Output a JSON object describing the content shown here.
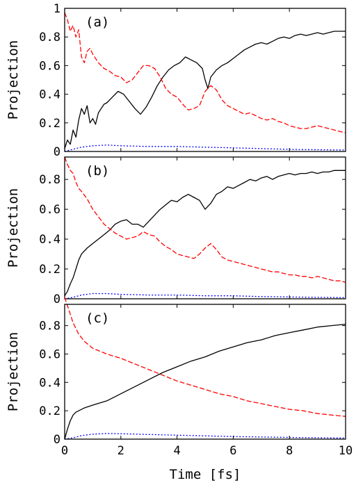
{
  "chart_data": [
    {
      "type": "line",
      "panel_label": "(a)",
      "xlabel": "",
      "ylabel": "Projection",
      "xlim": [
        0,
        10
      ],
      "ylim": [
        0,
        1
      ],
      "xticks": [
        "0",
        "2",
        "4",
        "6",
        "8",
        "10"
      ],
      "yticks": [
        "0",
        "0.2",
        "0.4",
        "0.6",
        "0.8",
        "1"
      ],
      "show_xtick_labels": false,
      "grid": false,
      "series": [
        {
          "color": "#000000",
          "style": "solid",
          "x": [
            0,
            0.1,
            0.2,
            0.3,
            0.4,
            0.5,
            0.6,
            0.7,
            0.8,
            0.9,
            1.0,
            1.1,
            1.2,
            1.3,
            1.4,
            1.5,
            1.7,
            1.9,
            2.1,
            2.3,
            2.5,
            2.7,
            2.9,
            3.1,
            3.3,
            3.5,
            3.7,
            3.9,
            4.1,
            4.3,
            4.5,
            4.7,
            4.9,
            5.0,
            5.1,
            5.2,
            5.4,
            5.6,
            5.8,
            6.0,
            6.2,
            6.4,
            6.6,
            6.8,
            7.0,
            7.2,
            7.4,
            7.6,
            7.8,
            8.0,
            8.2,
            8.4,
            8.6,
            8.8,
            9.0,
            9.2,
            9.4,
            9.6,
            9.8,
            10
          ],
          "y": [
            0.02,
            0.08,
            0.05,
            0.15,
            0.1,
            0.22,
            0.3,
            0.26,
            0.32,
            0.2,
            0.23,
            0.19,
            0.27,
            0.3,
            0.33,
            0.34,
            0.38,
            0.42,
            0.4,
            0.35,
            0.3,
            0.26,
            0.31,
            0.38,
            0.46,
            0.52,
            0.57,
            0.6,
            0.62,
            0.66,
            0.64,
            0.62,
            0.58,
            0.5,
            0.44,
            0.52,
            0.57,
            0.6,
            0.62,
            0.65,
            0.68,
            0.71,
            0.73,
            0.75,
            0.76,
            0.75,
            0.77,
            0.79,
            0.8,
            0.79,
            0.81,
            0.82,
            0.81,
            0.82,
            0.83,
            0.82,
            0.83,
            0.84,
            0.84,
            0.84
          ]
        },
        {
          "color": "#ff0000",
          "style": "dashed",
          "x": [
            0,
            0.1,
            0.2,
            0.3,
            0.4,
            0.5,
            0.6,
            0.7,
            0.8,
            0.9,
            1.0,
            1.2,
            1.4,
            1.6,
            1.8,
            2.0,
            2.2,
            2.4,
            2.6,
            2.8,
            3.0,
            3.2,
            3.4,
            3.6,
            3.8,
            4.0,
            4.2,
            4.4,
            4.6,
            4.8,
            5.0,
            5.2,
            5.4,
            5.6,
            5.8,
            6.0,
            6.2,
            6.4,
            6.6,
            6.8,
            7.0,
            7.2,
            7.4,
            7.6,
            7.8,
            8.0,
            8.2,
            8.4,
            8.6,
            8.8,
            9.0,
            9.2,
            9.4,
            9.6,
            9.8,
            10
          ],
          "y": [
            0.97,
            0.92,
            0.84,
            0.88,
            0.8,
            0.85,
            0.66,
            0.62,
            0.7,
            0.72,
            0.68,
            0.62,
            0.58,
            0.56,
            0.53,
            0.52,
            0.48,
            0.5,
            0.55,
            0.6,
            0.6,
            0.58,
            0.52,
            0.44,
            0.4,
            0.38,
            0.33,
            0.29,
            0.3,
            0.32,
            0.42,
            0.46,
            0.43,
            0.36,
            0.32,
            0.3,
            0.28,
            0.26,
            0.27,
            0.25,
            0.23,
            0.22,
            0.23,
            0.21,
            0.2,
            0.18,
            0.17,
            0.16,
            0.16,
            0.17,
            0.18,
            0.17,
            0.16,
            0.15,
            0.14,
            0.13
          ]
        },
        {
          "color": "#0000ff",
          "style": "dotted",
          "x": [
            0,
            0.3,
            0.6,
            1.0,
            1.5,
            2.0,
            3.0,
            4.0,
            5.0,
            6.0,
            7.0,
            8.0,
            9.0,
            10
          ],
          "y": [
            0.0,
            0.015,
            0.03,
            0.04,
            0.045,
            0.04,
            0.035,
            0.035,
            0.03,
            0.025,
            0.02,
            0.015,
            0.012,
            0.01
          ]
        }
      ]
    },
    {
      "type": "line",
      "panel_label": "(b)",
      "xlabel": "",
      "ylabel": "Projection",
      "xlim": [
        0,
        10
      ],
      "ylim": [
        0,
        0.95
      ],
      "xticks": [
        "0",
        "2",
        "4",
        "6",
        "8",
        "10"
      ],
      "yticks": [
        "0",
        "0.2",
        "0.4",
        "0.6",
        "0.8"
      ],
      "show_xtick_labels": false,
      "grid": false,
      "series": [
        {
          "color": "#000000",
          "style": "solid",
          "x": [
            0,
            0.1,
            0.2,
            0.3,
            0.4,
            0.5,
            0.6,
            0.8,
            1.0,
            1.2,
            1.4,
            1.6,
            1.8,
            2.0,
            2.2,
            2.4,
            2.6,
            2.8,
            3.0,
            3.2,
            3.4,
            3.6,
            3.8,
            4.0,
            4.2,
            4.4,
            4.6,
            4.8,
            5.0,
            5.2,
            5.4,
            5.6,
            5.8,
            6.0,
            6.2,
            6.4,
            6.6,
            6.8,
            7.0,
            7.2,
            7.4,
            7.6,
            7.8,
            8.0,
            8.2,
            8.4,
            8.6,
            8.8,
            9.0,
            9.2,
            9.4,
            9.6,
            9.8,
            10
          ],
          "y": [
            0.02,
            0.05,
            0.1,
            0.14,
            0.2,
            0.26,
            0.3,
            0.34,
            0.37,
            0.4,
            0.43,
            0.46,
            0.5,
            0.52,
            0.53,
            0.5,
            0.5,
            0.48,
            0.52,
            0.56,
            0.6,
            0.63,
            0.66,
            0.65,
            0.68,
            0.7,
            0.68,
            0.66,
            0.6,
            0.64,
            0.7,
            0.72,
            0.75,
            0.74,
            0.76,
            0.78,
            0.8,
            0.79,
            0.81,
            0.82,
            0.8,
            0.82,
            0.83,
            0.84,
            0.83,
            0.84,
            0.84,
            0.85,
            0.84,
            0.85,
            0.85,
            0.86,
            0.86,
            0.86
          ]
        },
        {
          "color": "#ff0000",
          "style": "dashed",
          "x": [
            0,
            0.1,
            0.2,
            0.3,
            0.4,
            0.5,
            0.6,
            0.8,
            1.0,
            1.2,
            1.4,
            1.6,
            1.8,
            2.0,
            2.2,
            2.4,
            2.6,
            2.8,
            3.0,
            3.2,
            3.4,
            3.6,
            3.8,
            4.0,
            4.2,
            4.4,
            4.6,
            4.8,
            5.0,
            5.2,
            5.4,
            5.6,
            5.8,
            6.0,
            6.2,
            6.4,
            6.6,
            6.8,
            7.0,
            7.2,
            7.4,
            7.6,
            7.8,
            8.0,
            8.2,
            8.4,
            8.6,
            8.8,
            9.0,
            9.2,
            9.4,
            9.6,
            9.8,
            10
          ],
          "y": [
            0.95,
            0.9,
            0.86,
            0.84,
            0.78,
            0.74,
            0.72,
            0.67,
            0.6,
            0.55,
            0.5,
            0.47,
            0.44,
            0.42,
            0.4,
            0.41,
            0.42,
            0.45,
            0.43,
            0.42,
            0.38,
            0.35,
            0.33,
            0.3,
            0.29,
            0.28,
            0.27,
            0.3,
            0.34,
            0.37,
            0.33,
            0.28,
            0.26,
            0.25,
            0.24,
            0.23,
            0.22,
            0.21,
            0.2,
            0.19,
            0.18,
            0.18,
            0.17,
            0.16,
            0.16,
            0.15,
            0.15,
            0.14,
            0.15,
            0.14,
            0.13,
            0.12,
            0.12,
            0.11
          ]
        },
        {
          "color": "#0000ff",
          "style": "dotted",
          "x": [
            0,
            0.3,
            0.6,
            1.0,
            1.5,
            2.0,
            3.0,
            4.0,
            5.0,
            6.0,
            7.0,
            8.0,
            9.0,
            10
          ],
          "y": [
            0.0,
            0.01,
            0.025,
            0.035,
            0.035,
            0.03,
            0.025,
            0.025,
            0.02,
            0.02,
            0.015,
            0.012,
            0.01,
            0.008
          ]
        }
      ]
    },
    {
      "type": "line",
      "panel_label": "(c)",
      "xlabel": "Time [fs]",
      "ylabel": "Projection",
      "xlim": [
        0,
        10
      ],
      "ylim": [
        0,
        0.95
      ],
      "xticks": [
        "0",
        "2",
        "4",
        "6",
        "8",
        "10"
      ],
      "yticks": [
        "0",
        "0.2",
        "0.4",
        "0.6",
        "0.8"
      ],
      "show_xtick_labels": true,
      "grid": false,
      "series": [
        {
          "color": "#000000",
          "style": "solid",
          "x": [
            0,
            0.1,
            0.2,
            0.3,
            0.4,
            0.5,
            0.7,
            1.0,
            1.5,
            2.0,
            2.5,
            3.0,
            3.5,
            4.0,
            4.5,
            5.0,
            5.5,
            6.0,
            6.5,
            7.0,
            7.5,
            8.0,
            8.5,
            9.0,
            9.5,
            10
          ],
          "y": [
            0.0,
            0.07,
            0.13,
            0.17,
            0.19,
            0.2,
            0.22,
            0.24,
            0.27,
            0.32,
            0.37,
            0.42,
            0.47,
            0.51,
            0.55,
            0.58,
            0.62,
            0.65,
            0.68,
            0.7,
            0.73,
            0.75,
            0.77,
            0.79,
            0.8,
            0.81
          ]
        },
        {
          "color": "#ff0000",
          "style": "dashed",
          "x": [
            0,
            0.1,
            0.2,
            0.3,
            0.5,
            0.7,
            1.0,
            1.5,
            2.0,
            2.5,
            3.0,
            3.5,
            4.0,
            4.5,
            5.0,
            5.5,
            6.0,
            6.5,
            7.0,
            7.5,
            8.0,
            8.5,
            9.0,
            9.5,
            10
          ],
          "y": [
            1.0,
            0.94,
            0.88,
            0.82,
            0.74,
            0.69,
            0.64,
            0.6,
            0.57,
            0.53,
            0.49,
            0.45,
            0.41,
            0.38,
            0.35,
            0.32,
            0.3,
            0.27,
            0.25,
            0.23,
            0.21,
            0.2,
            0.18,
            0.17,
            0.16
          ]
        },
        {
          "color": "#0000ff",
          "style": "dotted",
          "x": [
            0,
            0.3,
            0.6,
            1.0,
            1.5,
            2.0,
            3.0,
            4.0,
            5.0,
            6.0,
            7.0,
            8.0,
            9.0,
            10
          ],
          "y": [
            0.0,
            0.01,
            0.025,
            0.035,
            0.04,
            0.038,
            0.033,
            0.028,
            0.023,
            0.018,
            0.015,
            0.012,
            0.01,
            0.008
          ]
        }
      ]
    }
  ]
}
